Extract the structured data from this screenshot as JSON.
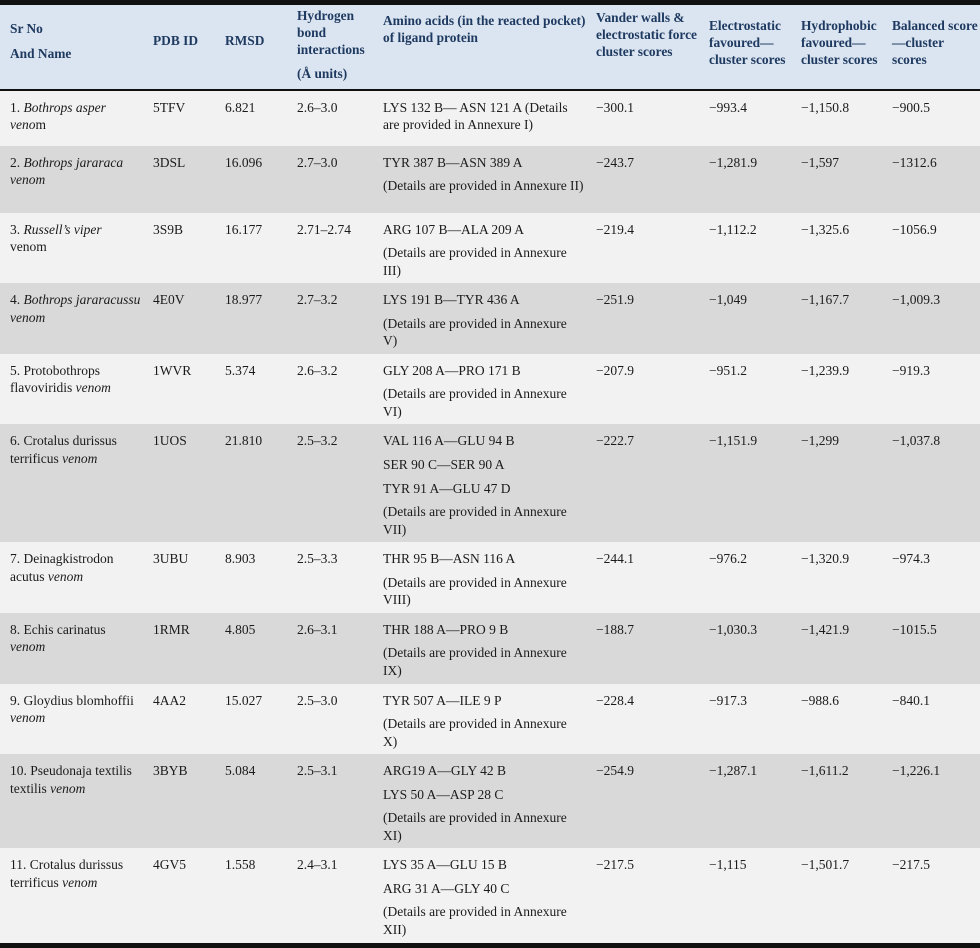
{
  "colors": {
    "header_bg": "#dbe5f1",
    "header_text": "#1f3a60",
    "row_light": "#f2f2f2",
    "row_dark": "#d9d9d9",
    "rule": "#111111",
    "body_text": "#1b1b1b"
  },
  "table": {
    "columns": {
      "sr_no_line1": "Sr No",
      "sr_no_line2": "And Name",
      "pdb_id": "PDB ID",
      "rmsd": "RMSD",
      "hbond_main": "Hydrogen bond interactions",
      "hbond_sub": "(Å units)",
      "amino": "Amino acids (in the reacted pocket) of ligand protein",
      "vdw": "Vander walls & electrostatic force cluster scores",
      "electro": "Electrostatic favoured—cluster scores",
      "hydro": "Hydrophobic favoured—cluster scores",
      "balanced": "Balanced score—cluster scores"
    },
    "rows": [
      {
        "name_segments": [
          {
            "text": "1. ",
            "italic": false
          },
          {
            "text": "Bothrops asper veno",
            "italic": true
          },
          {
            "text": "m",
            "italic": false
          }
        ],
        "pdb_id": "5TFV",
        "rmsd": "6.821",
        "hbond": "2.6–3.0",
        "amino": [
          "LYS 132 B— ASN 121 A (Details are provided in Annexure I)"
        ],
        "vdw": "−300.1",
        "electro": "−993.4",
        "hydro": "−1,150.8",
        "balanced": "−900.5"
      },
      {
        "name_segments": [
          {
            "text": "2. ",
            "italic": false
          },
          {
            "text": "Bothrops jararaca venom",
            "italic": true
          }
        ],
        "pdb_id": "3DSL",
        "rmsd": "16.096",
        "hbond": "2.7–3.0",
        "amino": [
          "TYR 387 B—ASN 389 A",
          "(Details are provided in Annexure II)"
        ],
        "vdw": "−243.7",
        "electro": "−1,281.9",
        "hydro": "−1,597",
        "balanced": "−1312.6"
      },
      {
        "name_segments": [
          {
            "text": "3. ",
            "italic": false
          },
          {
            "text": "Russell’s viper",
            "italic": true
          },
          {
            "text": " venom",
            "italic": false
          }
        ],
        "pdb_id": "3S9B",
        "rmsd": "16.177",
        "hbond": "2.71–2.74",
        "amino": [
          "ARG 107 B—ALA 209 A",
          "(Details are provided in Annexure III)"
        ],
        "vdw": "−219.4",
        "electro": "−1,112.2",
        "hydro": "−1,325.6",
        "balanced": "−1056.9"
      },
      {
        "name_segments": [
          {
            "text": "4. ",
            "italic": false
          },
          {
            "text": "Bothrops jararacussu venom",
            "italic": true
          }
        ],
        "pdb_id": "4E0V",
        "rmsd": "18.977",
        "hbond": "2.7–3.2",
        "amino": [
          "LYS 191 B—TYR 436 A",
          "(Details are provided in Annexure V)"
        ],
        "vdw": "−251.9",
        "electro": "−1,049",
        "hydro": "−1,167.7",
        "balanced": "−1,009.3"
      },
      {
        "name_segments": [
          {
            "text": "5. Protobothrops flavoviridis ",
            "italic": false
          },
          {
            "text": "venom",
            "italic": true
          }
        ],
        "pdb_id": "1WVR",
        "rmsd": "5.374",
        "hbond": "2.6–3.2",
        "amino": [
          "GLY 208 A—PRO 171 B",
          "(Details are provided in Annexure VI)"
        ],
        "vdw": "−207.9",
        "electro": "−951.2",
        "hydro": "−1,239.9",
        "balanced": "−919.3"
      },
      {
        "name_segments": [
          {
            "text": "6. Crotalus durissus terrificus ",
            "italic": false
          },
          {
            "text": "venom",
            "italic": true
          }
        ],
        "pdb_id": "1UOS",
        "rmsd": "21.810",
        "hbond": "2.5–3.2",
        "amino": [
          "VAL 116 A—GLU 94 B",
          "SER 90 C—SER 90 A",
          "TYR 91 A—GLU 47 D",
          "(Details are provided in Annexure VII)"
        ],
        "vdw": "−222.7",
        "electro": "−1,151.9",
        "hydro": "−1,299",
        "balanced": "−1,037.8"
      },
      {
        "name_segments": [
          {
            "text": "7. Deinagkistrodon acutus ",
            "italic": false
          },
          {
            "text": "venom",
            "italic": true
          }
        ],
        "pdb_id": "3UBU",
        "rmsd": "8.903",
        "hbond": "2.5–3.3",
        "amino": [
          "THR 95 B—ASN 116 A",
          "(Details are provided in Annexure VIII)"
        ],
        "vdw": "−244.1",
        "electro": "−976.2",
        "hydro": "−1,320.9",
        "balanced": "−974.3"
      },
      {
        "name_segments": [
          {
            "text": "8. Echis carinatus ",
            "italic": false
          },
          {
            "text": "venom",
            "italic": true
          }
        ],
        "pdb_id": "1RMR",
        "rmsd": "4.805",
        "hbond": "2.6–3.1",
        "amino": [
          "THR 188 A—PRO 9 B",
          "(Details are provided in Annexure IX)"
        ],
        "vdw": "−188.7",
        "electro": "−1,030.3",
        "hydro": "−1,421.9",
        "balanced": "−1015.5"
      },
      {
        "name_segments": [
          {
            "text": "9. Gloydius blomhoffii ",
            "italic": false
          },
          {
            "text": "venom",
            "italic": true
          }
        ],
        "pdb_id": "4AA2",
        "rmsd": "15.027",
        "hbond": "2.5–3.0",
        "amino": [
          "TYR 507 A—ILE 9 P",
          "(Details are provided in Annexure X)"
        ],
        "vdw": "−228.4",
        "electro": "−917.3",
        "hydro": "−988.6",
        "balanced": "−840.1"
      },
      {
        "name_segments": [
          {
            "text": "10. Pseudonaja textilis textilis ",
            "italic": false
          },
          {
            "text": "venom",
            "italic": true
          }
        ],
        "pdb_id": "3BYB",
        "rmsd": "5.084",
        "hbond": "2.5–3.1",
        "amino": [
          "ARG19 A—GLY 42 B",
          "LYS 50 A—ASP 28 C",
          "(Details are provided in Annexure XI)"
        ],
        "vdw": "−254.9",
        "electro": "−1,287.1",
        "hydro": "−1,611.2",
        "balanced": "−1,226.1"
      },
      {
        "name_segments": [
          {
            "text": "11. Crotalus durissus terrificus ",
            "italic": false
          },
          {
            "text": "venom",
            "italic": true
          }
        ],
        "pdb_id": "4GV5",
        "rmsd": "1.558",
        "hbond": "2.4–3.1",
        "amino": [
          "LYS 35 A—GLU 15 B",
          "ARG 31 A—GLY 40 C",
          "(Details are provided in Annexure XII)"
        ],
        "vdw": "−217.5",
        "electro": "−1,115",
        "hydro": "−1,501.7",
        "balanced": "−217.5"
      }
    ]
  }
}
